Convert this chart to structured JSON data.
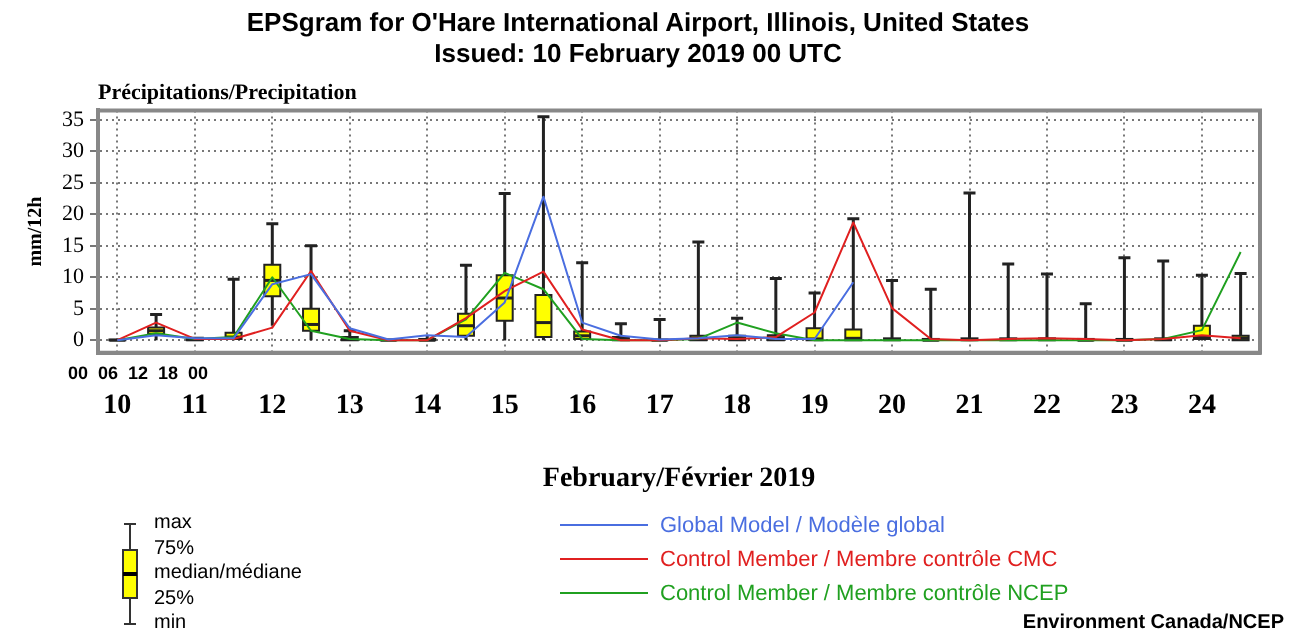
{
  "chart_data": {
    "type": "box",
    "title": "EPSgram for O'Hare International Airport, Illinois, United States",
    "subtitle": "Issued: 10 February 2019 00 UTC",
    "xlabel": "February/Février 2019",
    "ylabel": "mm/12h",
    "annotations": [
      "Précipitations/Precipitation",
      "Environment Canada/NCEP",
      "max",
      "75%",
      "median/médiane",
      "25%",
      "min",
      "00",
      "06",
      "12",
      "18",
      "00"
    ],
    "color": "#ffff00",
    "categories": [
      "10",
      null,
      "11",
      null,
      "12",
      null,
      "13",
      null,
      "14",
      null,
      "15",
      null,
      "16",
      null,
      "17",
      null,
      "18",
      null,
      "19",
      null,
      "20",
      null,
      "21",
      null,
      "22",
      null,
      "23",
      null,
      "24",
      null
    ],
    "boxes": [
      {
        "low": 0,
        "q1": 0,
        "median": 0,
        "q3": 0.1,
        "high": 0.2
      },
      {
        "low": 0,
        "q1": 1,
        "median": 1.5,
        "q3": 2,
        "high": 4.1
      },
      {
        "low": 0,
        "q1": 0,
        "median": 0.1,
        "q3": 0.4,
        "high": 0.5
      },
      {
        "low": 0,
        "q1": 0.2,
        "median": 0.5,
        "q3": 1.2,
        "high": 9.7
      },
      {
        "low": 2.3,
        "q1": 7,
        "median": 9.5,
        "q3": 12,
        "high": 18.5
      },
      {
        "low": 0,
        "q1": 1.5,
        "median": 2.5,
        "q3": 5,
        "high": 15
      },
      {
        "low": 0,
        "q1": 0,
        "median": 0.2,
        "q3": 0.5,
        "high": 1.5
      },
      {
        "low": 0,
        "q1": 0,
        "median": 0,
        "q3": 0.1,
        "high": 0.2
      },
      {
        "low": 0,
        "q1": 0,
        "median": 0,
        "q3": 0.2,
        "high": 0.8
      },
      {
        "low": 0,
        "q1": 0.7,
        "median": 2.3,
        "q3": 4.2,
        "high": 11.9
      },
      {
        "low": 0,
        "q1": 3.1,
        "median": 6.7,
        "q3": 10.3,
        "high": 23.3
      },
      {
        "low": 0,
        "q1": 0.5,
        "median": 2.8,
        "q3": 7.2,
        "high": 35.5
      },
      {
        "low": 0,
        "q1": 0.2,
        "median": 0.7,
        "q3": 1.4,
        "high": 12.3
      },
      {
        "low": 0,
        "q1": 0,
        "median": 0.2,
        "q3": 0.5,
        "high": 2.6
      },
      {
        "low": 0,
        "q1": 0,
        "median": 0,
        "q3": 0.1,
        "high": 3.3
      },
      {
        "low": 0,
        "q1": 0,
        "median": 0.3,
        "q3": 0.7,
        "high": 15.6
      },
      {
        "low": 0,
        "q1": 0,
        "median": 0.3,
        "q3": 0.7,
        "high": 3.5
      },
      {
        "low": 0,
        "q1": 0,
        "median": 0.4,
        "q3": 0.8,
        "high": 9.8
      },
      {
        "low": 0,
        "q1": 0,
        "median": 0.2,
        "q3": 1.9,
        "high": 7.5
      },
      {
        "low": 0,
        "q1": 0,
        "median": 0.3,
        "q3": 1.7,
        "high": 19.3
      },
      {
        "low": 0,
        "q1": 0,
        "median": 0.1,
        "q3": 0.3,
        "high": 9.5
      },
      {
        "low": 0,
        "q1": 0,
        "median": 0,
        "q3": 0.2,
        "high": 8.1
      },
      {
        "low": 0,
        "q1": 0,
        "median": 0.1,
        "q3": 0.3,
        "high": 23.4
      },
      {
        "low": 0,
        "q1": 0,
        "median": 0.1,
        "q3": 0.3,
        "high": 12.1
      },
      {
        "low": 0,
        "q1": 0,
        "median": 0.1,
        "q3": 0.3,
        "high": 10.5
      },
      {
        "low": 0,
        "q1": 0,
        "median": 0,
        "q3": 0.2,
        "high": 5.8
      },
      {
        "low": 0,
        "q1": 0,
        "median": 0,
        "q3": 0.2,
        "high": 13.1
      },
      {
        "low": 0,
        "q1": 0,
        "median": 0.1,
        "q3": 0.3,
        "high": 12.6
      },
      {
        "low": 0,
        "q1": 0.2,
        "median": 0.5,
        "q3": 2.3,
        "high": 10.3
      },
      {
        "low": 0,
        "q1": 0,
        "median": 0.3,
        "q3": 0.7,
        "high": 10.6
      }
    ],
    "series": [
      {
        "type": "line",
        "name": "Global Model / Modèle global",
        "color": "#4a6ee0",
        "values": [
          0,
          0.8,
          0.3,
          0.3,
          8.9,
          10.5,
          1.9,
          0.1,
          0.8,
          0.5,
          6,
          22.8,
          2.8,
          0.7,
          0.1,
          0.3,
          0.8,
          0.2,
          0.2,
          9.2,
          null,
          null,
          null,
          null,
          null,
          null,
          null,
          null,
          null,
          null
        ]
      },
      {
        "type": "line",
        "name": "Control Member / Membre contrôle CMC",
        "color": "#e02020",
        "values": [
          0,
          2.8,
          0.2,
          0.2,
          2,
          11,
          1.5,
          0,
          0,
          3.5,
          7.8,
          10.9,
          1.7,
          0,
          0,
          0.3,
          0.2,
          0.5,
          4.4,
          18.7,
          5.1,
          0.2,
          0,
          0.2,
          0.3,
          0.2,
          0,
          0.2,
          0.8,
          0.3
        ]
      },
      {
        "type": "line",
        "name": "Control Member / Membre contrôle NCEP",
        "color": "#20a020",
        "values": [
          0,
          1.1,
          0.2,
          0.5,
          10,
          1.5,
          0.2,
          0,
          0,
          3.3,
          10.7,
          8.1,
          0.2,
          0,
          0,
          0.2,
          2.8,
          1.1,
          0,
          0,
          0,
          0,
          0,
          0,
          0,
          0,
          0,
          0.2,
          1.6,
          14
        ]
      }
    ],
    "ylim": [
      -2,
      36.5
    ],
    "yticks": [
      0,
      5,
      10,
      15,
      20,
      25,
      30,
      35
    ],
    "grid": true,
    "legend": "bottom",
    "marker": "none",
    "line_style": "solid"
  }
}
